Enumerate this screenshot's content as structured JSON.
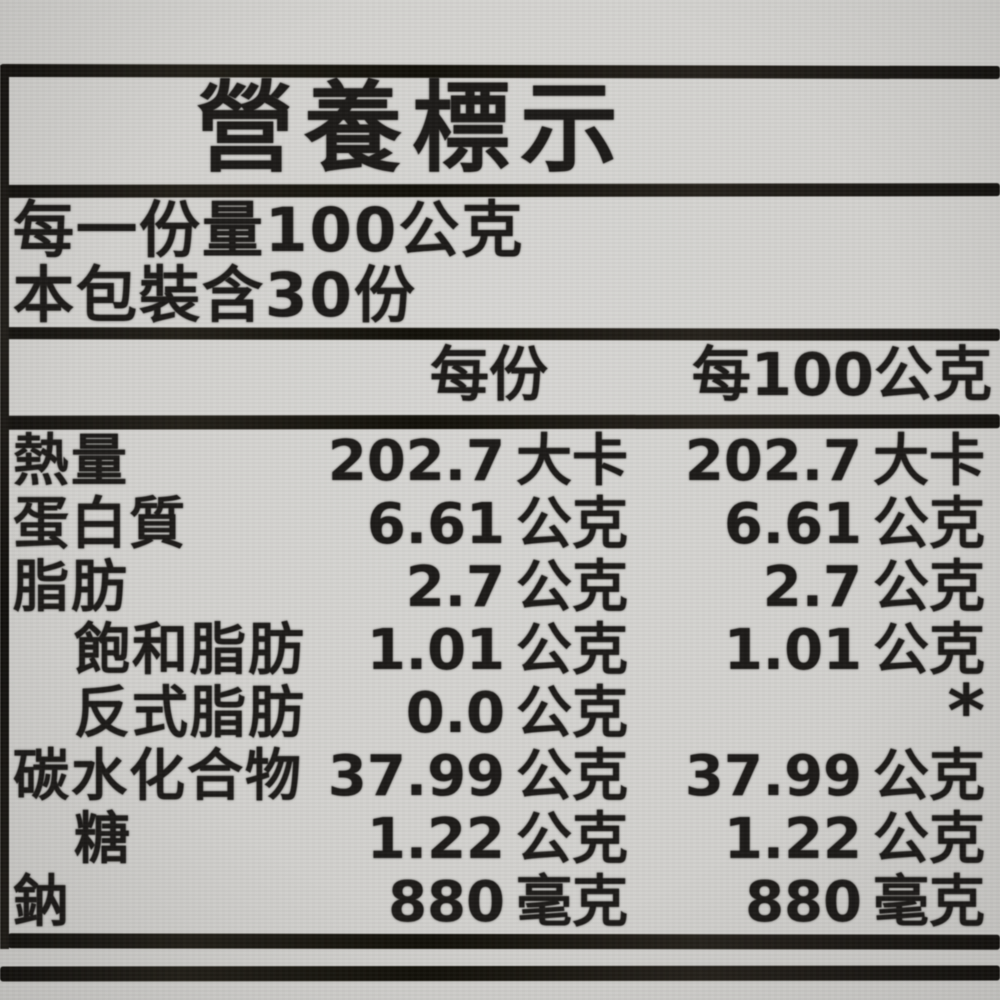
{
  "colors": {
    "paper": "#d2d1ce",
    "ink": "#1c1a18"
  },
  "label": {
    "title": "營養標示",
    "serving_info": {
      "serving_size": "每一份量100公克",
      "servings_per_package": "本包裝含30份"
    },
    "columns": {
      "per_serving": "每份",
      "per_100g": "每100公克"
    },
    "rows": [
      {
        "label": "熱量",
        "indent": false,
        "per_serving": {
          "value": "202.7",
          "unit": "大卡"
        },
        "per_100g": {
          "value": "202.7",
          "unit": "大卡"
        }
      },
      {
        "label": "蛋白質",
        "indent": false,
        "per_serving": {
          "value": "6.61",
          "unit": "公克"
        },
        "per_100g": {
          "value": "6.61",
          "unit": "公克"
        }
      },
      {
        "label": "脂肪",
        "indent": false,
        "per_serving": {
          "value": "2.7",
          "unit": "公克"
        },
        "per_100g": {
          "value": "2.7",
          "unit": "公克"
        }
      },
      {
        "label": "飽和脂肪",
        "indent": true,
        "per_serving": {
          "value": "1.01",
          "unit": "公克"
        },
        "per_100g": {
          "value": "1.01",
          "unit": "公克"
        }
      },
      {
        "label": "反式脂肪",
        "indent": true,
        "per_serving": {
          "value": "0.0",
          "unit": "公克"
        },
        "per_100g": {
          "value": "*",
          "unit": ""
        }
      },
      {
        "label": "碳水化合物",
        "indent": false,
        "per_serving": {
          "value": "37.99",
          "unit": "公克"
        },
        "per_100g": {
          "value": "37.99",
          "unit": "公克"
        }
      },
      {
        "label": "糖",
        "indent": true,
        "per_serving": {
          "value": "1.22",
          "unit": "公克"
        },
        "per_100g": {
          "value": "1.22",
          "unit": "公克"
        }
      },
      {
        "label": "鈉",
        "indent": false,
        "per_serving": {
          "value": "880",
          "unit": "毫克"
        },
        "per_100g": {
          "value": "880",
          "unit": "毫克"
        }
      }
    ]
  }
}
